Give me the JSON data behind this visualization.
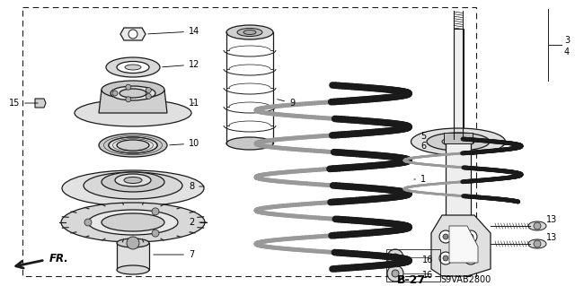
{
  "background_color": "#ffffff",
  "line_color": "#1a1a1a",
  "text_color": "#000000",
  "font_size": 7.0,
  "page_label": "B-27",
  "part_code": "S9VAB2800",
  "figsize": [
    6.4,
    3.19
  ],
  "dpi": 100
}
